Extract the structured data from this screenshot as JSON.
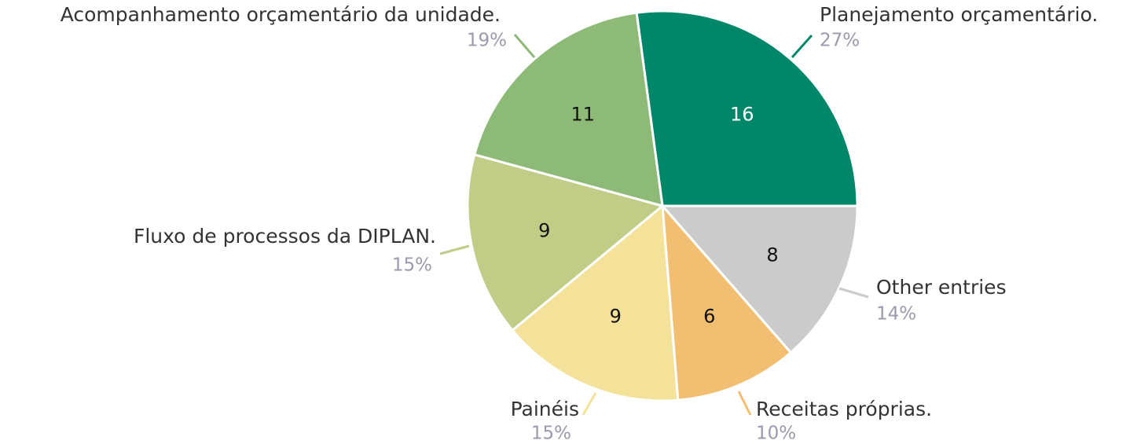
{
  "chart_data": {
    "type": "pie",
    "categories": [
      "Planejamento orçamentário.",
      "Other entries",
      "Receitas próprias.",
      "Painéis",
      "Fluxo de processos da DIPLAN.",
      "Acompanhamento orçamentário da unidade."
    ],
    "values": [
      16,
      8,
      6,
      9,
      9,
      11
    ],
    "percent_labels": [
      "27%",
      "14%",
      "10%",
      "15%",
      "15%",
      "19%"
    ],
    "colors": [
      "#00876a",
      "#cbcbcb",
      "#f2bf72",
      "#f4e29a",
      "#c1cd87",
      "#8eba78"
    ]
  }
}
